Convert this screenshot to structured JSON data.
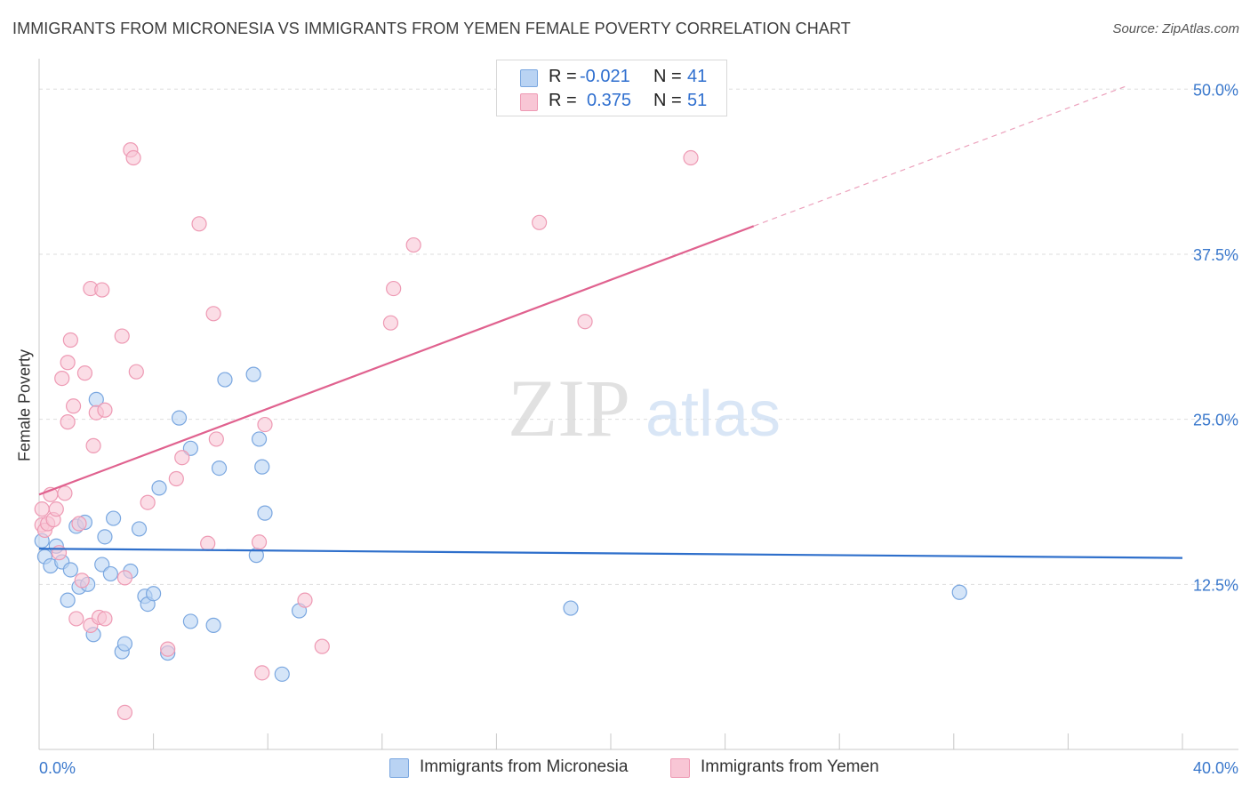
{
  "title": "IMMIGRANTS FROM MICRONESIA VS IMMIGRANTS FROM YEMEN FEMALE POVERTY CORRELATION CHART",
  "source": "Source: ZipAtlas.com",
  "watermark": {
    "zip": "ZIP",
    "atlas": "atlas"
  },
  "legend": {
    "r_label": "R =",
    "n_label": "N =",
    "rows": [
      {
        "name": "Immigrants from Micronesia",
        "r": "-0.021",
        "n": "41"
      },
      {
        "name": "Immigrants from Yemen",
        "r": "0.375",
        "n": "51"
      }
    ]
  },
  "colors": {
    "micronesia_fill": "#b9d3f3",
    "micronesia_stroke": "#7aa7e0",
    "micronesia_line": "#2e6fcb",
    "yemen_fill": "#f8c6d5",
    "yemen_stroke": "#ee9ab4",
    "yemen_line": "#e0628f",
    "axis_text": "#3a78cc",
    "grid": "#dddddd"
  },
  "chart_data": {
    "type": "scatter",
    "title": "IMMIGRANTS FROM MICRONESIA VS IMMIGRANTS FROM YEMEN FEMALE POVERTY CORRELATION CHART",
    "xlabel": "",
    "ylabel": "Female Poverty",
    "xlim": [
      0,
      40
    ],
    "ylim": [
      0,
      52
    ],
    "x_tick_labels": [
      {
        "value": 0,
        "label": "0.0%"
      },
      {
        "value": 40,
        "label": "40.0%"
      }
    ],
    "y_tick_labels": [
      {
        "value": 12.5,
        "label": "12.5%"
      },
      {
        "value": 25,
        "label": "25.0%"
      },
      {
        "value": 37.5,
        "label": "37.5%"
      },
      {
        "value": 50,
        "label": "50.0%"
      }
    ],
    "series": [
      {
        "name": "Immigrants from Micronesia",
        "points": [
          [
            0.1,
            15.8
          ],
          [
            0.2,
            14.6
          ],
          [
            0.4,
            13.9
          ],
          [
            0.6,
            15.4
          ],
          [
            0.8,
            14.2
          ],
          [
            1.0,
            11.3
          ],
          [
            1.1,
            13.6
          ],
          [
            1.3,
            16.9
          ],
          [
            1.4,
            12.3
          ],
          [
            1.6,
            17.2
          ],
          [
            1.7,
            12.5
          ],
          [
            1.9,
            8.7
          ],
          [
            2.0,
            26.5
          ],
          [
            2.2,
            14.0
          ],
          [
            2.3,
            16.1
          ],
          [
            2.5,
            13.3
          ],
          [
            2.6,
            17.5
          ],
          [
            2.9,
            7.4
          ],
          [
            3.0,
            8.0
          ],
          [
            3.2,
            13.5
          ],
          [
            3.5,
            16.7
          ],
          [
            3.7,
            11.6
          ],
          [
            3.8,
            11.0
          ],
          [
            4.0,
            11.8
          ],
          [
            4.2,
            19.8
          ],
          [
            4.5,
            7.3
          ],
          [
            4.9,
            25.1
          ],
          [
            5.3,
            22.8
          ],
          [
            5.3,
            9.7
          ],
          [
            6.1,
            9.4
          ],
          [
            6.3,
            21.3
          ],
          [
            6.5,
            28.0
          ],
          [
            7.5,
            28.4
          ],
          [
            7.6,
            14.7
          ],
          [
            7.7,
            23.5
          ],
          [
            7.8,
            21.4
          ],
          [
            7.9,
            17.9
          ],
          [
            8.5,
            5.7
          ],
          [
            9.1,
            10.5
          ],
          [
            18.6,
            10.7
          ],
          [
            32.2,
            11.9
          ]
        ]
      },
      {
        "name": "Immigrants from Yemen",
        "points": [
          [
            0.1,
            17.0
          ],
          [
            0.1,
            18.2
          ],
          [
            0.2,
            16.6
          ],
          [
            0.3,
            17.1
          ],
          [
            0.4,
            19.3
          ],
          [
            0.5,
            17.4
          ],
          [
            0.6,
            18.2
          ],
          [
            0.7,
            14.9
          ],
          [
            0.8,
            28.1
          ],
          [
            0.9,
            19.4
          ],
          [
            1.0,
            24.8
          ],
          [
            1.0,
            29.3
          ],
          [
            1.1,
            31.0
          ],
          [
            1.2,
            26.0
          ],
          [
            1.3,
            9.9
          ],
          [
            1.4,
            17.1
          ],
          [
            1.5,
            12.8
          ],
          [
            1.6,
            28.5
          ],
          [
            1.8,
            9.4
          ],
          [
            1.8,
            34.9
          ],
          [
            1.9,
            23.0
          ],
          [
            2.0,
            25.5
          ],
          [
            2.1,
            10.0
          ],
          [
            2.2,
            34.8
          ],
          [
            2.3,
            25.7
          ],
          [
            2.3,
            9.9
          ],
          [
            2.9,
            31.3
          ],
          [
            3.0,
            13.0
          ],
          [
            3.0,
            2.8
          ],
          [
            3.2,
            45.4
          ],
          [
            3.3,
            44.8
          ],
          [
            3.4,
            28.6
          ],
          [
            3.8,
            18.7
          ],
          [
            4.5,
            7.6
          ],
          [
            4.8,
            20.5
          ],
          [
            5.0,
            22.1
          ],
          [
            5.6,
            39.8
          ],
          [
            5.9,
            15.6
          ],
          [
            6.1,
            33.0
          ],
          [
            6.2,
            23.5
          ],
          [
            7.7,
            15.7
          ],
          [
            7.8,
            5.8
          ],
          [
            7.9,
            24.6
          ],
          [
            9.3,
            11.3
          ],
          [
            9.9,
            7.8
          ],
          [
            12.3,
            32.3
          ],
          [
            12.4,
            34.9
          ],
          [
            13.1,
            38.2
          ],
          [
            17.5,
            39.9
          ],
          [
            19.1,
            32.4
          ],
          [
            22.8,
            44.8
          ]
        ]
      }
    ],
    "trend_lines": [
      {
        "series": "Immigrants from Micronesia",
        "x_start": 0,
        "y_start": 15.2,
        "x_end": 40,
        "y_end": 14.5,
        "dashed_from": null
      },
      {
        "series": "Immigrants from Yemen",
        "x_start": 0,
        "y_start": 19.3,
        "x_end": 38,
        "y_end": 50.2,
        "dashed_from": 25
      }
    ],
    "grid": true,
    "legend_position": "top-center"
  }
}
